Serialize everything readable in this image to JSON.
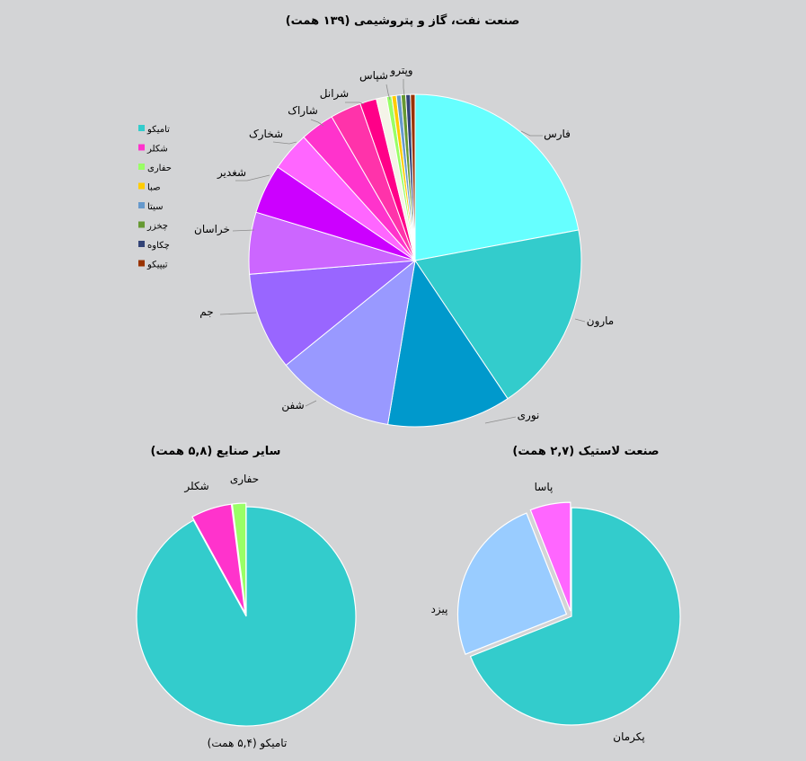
{
  "chart_data": [
    {
      "type": "pie",
      "title": "صنعت نفت، گاز و پتروشیمی (۱۳۹ همت)",
      "start_angle_deg": 0,
      "slices": [
        {
          "label": "فارس",
          "value": 22.0,
          "color": "#66ffff"
        },
        {
          "label": "مارون",
          "value": 18.5,
          "color": "#33cccc"
        },
        {
          "label": "نوری",
          "value": 12.0,
          "color": "#0099cc"
        },
        {
          "label": "شفن",
          "value": 11.5,
          "color": "#9999ff"
        },
        {
          "label": "جم",
          "value": 9.5,
          "color": "#9966ff"
        },
        {
          "label": "خراسان",
          "value": 6.0,
          "color": "#cc66ff"
        },
        {
          "label": "شغدیر",
          "value": 4.8,
          "color": "#cc00ff"
        },
        {
          "label": "شخارک",
          "value": 3.8,
          "color": "#ff66ff"
        },
        {
          "label": "شاراک",
          "value": 3.3,
          "color": "#ff33cc"
        },
        {
          "label": "شرانل",
          "value": 3.0,
          "color": "#ff33aa"
        },
        {
          "label": "شپاس",
          "value": 1.6,
          "color": "#ff0088"
        },
        {
          "label": "وپترو",
          "value": 1.0,
          "color": "#f4f4e8"
        },
        {
          "label": "",
          "value": 0.5,
          "color": "#99ff66"
        },
        {
          "label": "",
          "value": 0.45,
          "color": "#ffcc00"
        },
        {
          "label": "",
          "value": 0.45,
          "color": "#6699cc"
        },
        {
          "label": "",
          "value": 0.45,
          "color": "#669933"
        },
        {
          "label": "",
          "value": 0.45,
          "color": "#334477"
        },
        {
          "label": "",
          "value": 0.45,
          "color": "#993300"
        }
      ],
      "legend": {
        "placement": "left",
        "items": [
          {
            "label": "تامیکو",
            "color": "#33cccc"
          },
          {
            "label": "شکلر",
            "color": "#ff33cc"
          },
          {
            "label": "حفاری",
            "color": "#99ff66"
          },
          {
            "label": "صبا",
            "color": "#ffcc00"
          },
          {
            "label": "سیتا",
            "color": "#6699cc"
          },
          {
            "label": "چخزر",
            "color": "#669933"
          },
          {
            "label": "چکاوه",
            "color": "#334477"
          },
          {
            "label": "تیپیکو",
            "color": "#993300"
          }
        ]
      }
    },
    {
      "type": "pie",
      "title": "سایر صنایع (۵,۸ همت)",
      "start_angle_deg": 0,
      "slices": [
        {
          "label": "تامیکو (۵,۴ همت)",
          "value": 92.0,
          "color": "#33cccc"
        },
        {
          "label": "شکلر",
          "value": 6.0,
          "color": "#ff33cc",
          "exploded": true
        },
        {
          "label": "حفاری",
          "value": 2.0,
          "color": "#99ff66",
          "exploded": true
        }
      ]
    },
    {
      "type": "pie",
      "title": "صنعت لاستیک (۲,۷ همت)",
      "start_angle_deg": 0,
      "slices": [
        {
          "label": "پکرمان",
          "value": 69.0,
          "color": "#33cccc"
        },
        {
          "label": "پیزد",
          "value": 25.0,
          "color": "#99ccff",
          "exploded": true
        },
        {
          "label": "پاسا",
          "value": 6.0,
          "color": "#ff66ff",
          "exploded": true
        }
      ]
    }
  ]
}
